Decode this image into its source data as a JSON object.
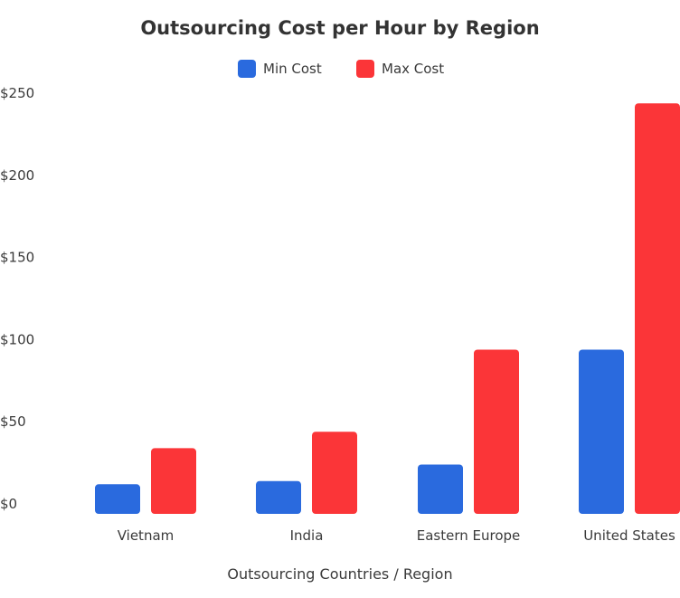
{
  "chart_data": {
    "type": "bar",
    "title": "Outsourcing Cost per Hour by Region",
    "xlabel": "Outsourcing Countries / Region",
    "ylabel": "",
    "categories": [
      "Vietnam",
      "India",
      "Eastern Europe",
      "United States"
    ],
    "series": [
      {
        "name": "Min Cost",
        "color": "#2a6ade",
        "values": [
          18,
          20,
          30,
          100
        ]
      },
      {
        "name": "Max Cost",
        "color": "#fb3538",
        "values": [
          40,
          50,
          100,
          250
        ]
      }
    ],
    "ylim": [
      0,
      260
    ],
    "yticks": [
      0,
      50,
      100,
      150,
      200,
      250
    ],
    "ytick_labels": [
      "$0",
      "$50",
      "$100",
      "$150",
      "$200",
      "$250"
    ],
    "grid": false,
    "legend_position": "top-center"
  }
}
